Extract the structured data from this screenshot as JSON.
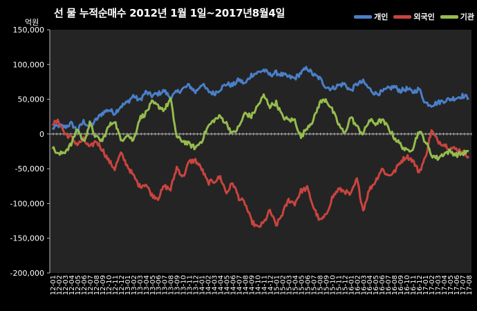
{
  "chart_data": {
    "type": "line",
    "title": "선 물 누적순매수 2012년 1월 1일~2017년8월4일",
    "unit_label": "억원",
    "ylim": [
      -200000,
      150000
    ],
    "y_ticks": [
      {
        "value": 150000,
        "label": "150,000"
      },
      {
        "value": 100000,
        "label": "100,000"
      },
      {
        "value": 50000,
        "label": "50,000"
      },
      {
        "value": 0,
        "label": "0"
      },
      {
        "value": -50000,
        "label": "-50,000"
      },
      {
        "value": -100000,
        "label": "-100,000"
      },
      {
        "value": -150000,
        "label": "-150,000"
      },
      {
        "value": -200000,
        "label": "-200,000"
      }
    ],
    "x_labels": [
      "12-01",
      "12-02",
      "12-03",
      "12-04",
      "12-05",
      "12-06",
      "12-07",
      "12-08",
      "12-09",
      "12-10",
      "12-11",
      "12-12",
      "13-01",
      "13-02",
      "13-03",
      "13-04",
      "13-05",
      "13-06",
      "13-07",
      "13-08",
      "13-09",
      "13-10",
      "13-11",
      "13-12",
      "14-01",
      "14-02",
      "14-03",
      "14-04",
      "14-05",
      "14-06",
      "14-07",
      "14-08",
      "14-09",
      "14-10",
      "14-11",
      "14-12",
      "15-01",
      "15-02",
      "15-03",
      "15-04",
      "15-05",
      "15-06",
      "15-07",
      "15-08",
      "15-09",
      "15-10",
      "15-11",
      "15-12",
      "16-01",
      "16-02",
      "16-03",
      "16-04",
      "16-05",
      "16-06",
      "16-07",
      "16-08",
      "16-09",
      "16-10",
      "16-11",
      "16-12",
      "17-01",
      "17-02",
      "17-03",
      "17-04",
      "17-05",
      "17-06",
      "17-07",
      "17-08"
    ],
    "grid": false,
    "legend_position": "top-right",
    "series": [
      {
        "name": "개인",
        "color": "#4a7fc9",
        "values": [
          8000,
          12000,
          10000,
          15000,
          5000,
          18000,
          10000,
          20000,
          30000,
          35000,
          30000,
          40000,
          45000,
          55000,
          48000,
          60000,
          55000,
          58000,
          62000,
          52000,
          60000,
          65000,
          70000,
          60000,
          72000,
          62000,
          58000,
          65000,
          72000,
          70000,
          78000,
          72000,
          85000,
          88000,
          92000,
          85000,
          88000,
          85000,
          82000,
          80000,
          88000,
          95000,
          85000,
          80000,
          68000,
          65000,
          70000,
          72000,
          62000,
          72000,
          75000,
          65000,
          58000,
          60000,
          65000,
          68000,
          62000,
          65000,
          60000,
          65000,
          45000,
          42000,
          45000,
          48000,
          50000,
          52000,
          55000,
          52000
        ]
      },
      {
        "name": "외국인",
        "color": "#c9443f",
        "values": [
          15000,
          18000,
          0,
          -5000,
          -15000,
          -8000,
          -20000,
          -10000,
          -22000,
          -38000,
          -50000,
          -28000,
          -45000,
          -60000,
          -75000,
          -72000,
          -88000,
          -92000,
          -75000,
          -80000,
          -48000,
          -62000,
          -40000,
          -38000,
          -50000,
          -70000,
          -68000,
          -62000,
          -85000,
          -70000,
          -92000,
          -100000,
          -125000,
          -135000,
          -128000,
          -110000,
          -132000,
          -115000,
          -95000,
          -100000,
          -82000,
          -78000,
          -105000,
          -125000,
          -118000,
          -92000,
          -80000,
          -82000,
          -88000,
          -65000,
          -110000,
          -80000,
          -68000,
          -50000,
          -60000,
          -55000,
          -40000,
          -32000,
          -38000,
          -55000,
          -35000,
          5000,
          -10000,
          -15000,
          -20000,
          -22000,
          -25000,
          -32000
        ]
      },
      {
        "name": "기관",
        "color": "#96bc4d",
        "values": [
          -20000,
          -30000,
          -25000,
          -15000,
          8000,
          -12000,
          15000,
          -5000,
          -10000,
          10000,
          20000,
          -10000,
          0,
          -10000,
          22000,
          30000,
          45000,
          40000,
          35000,
          50000,
          -5000,
          -10000,
          -15000,
          -20000,
          -10000,
          10000,
          20000,
          25000,
          15000,
          0,
          10000,
          30000,
          25000,
          40000,
          55000,
          40000,
          45000,
          25000,
          20000,
          20000,
          -5000,
          10000,
          20000,
          45000,
          50000,
          35000,
          15000,
          0,
          25000,
          10000,
          0,
          20000,
          15000,
          20000,
          10000,
          -5000,
          -15000,
          -25000,
          -20000,
          5000,
          -10000,
          -30000,
          -35000,
          -28000,
          -25000,
          -30000,
          -28000,
          -25000
        ]
      }
    ]
  }
}
